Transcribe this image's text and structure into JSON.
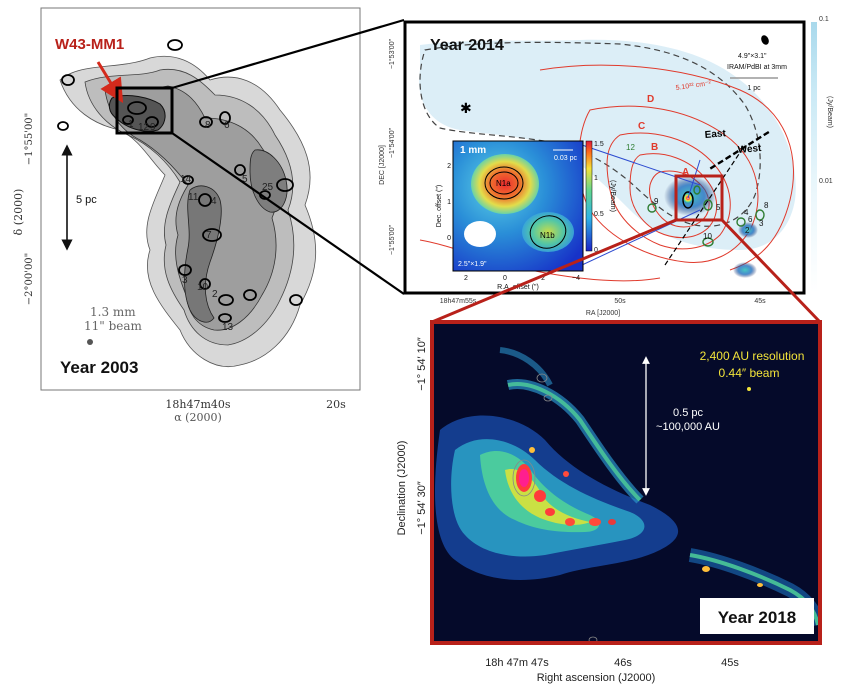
{
  "panels": {
    "p2003": {
      "title": "Year 2003",
      "source_label": "W43-MM1",
      "scale_label": "5 pc",
      "beam_label_line1": "1.3 mm",
      "beam_label_line2": "11\" beam",
      "ytick_1": "−1°55'00\"",
      "ytick_2": "−2°00'00\"",
      "ylabel": "δ (2000)",
      "xtick_1": "18h47m40s",
      "xtick_2": "20s",
      "xlabel": "α (2000)",
      "core_ids": [
        "1",
        "2",
        "3",
        "4",
        "5",
        "6",
        "7",
        "8",
        "9",
        "10",
        "11",
        "12",
        "13",
        "14",
        "25"
      ]
    },
    "p2014": {
      "title": "Year 2014",
      "beam_label": "4.9\"×3.1\"",
      "instrument_label": "IRAM/PdBI at 3mm",
      "scale_label": "1 pc",
      "ytick_1": "−1°53'00\"",
      "ytick_2": "−1°54'00\"",
      "ytick_3": "−1°55'00\"",
      "ylabel": "DEC [J2000]",
      "xtick_1": "18h47m55s",
      "xtick_2": "50s",
      "xtick_3": "45s",
      "xlabel": "RA [J2000]",
      "cbar_top": "0.1",
      "cbar_mid": "0.01",
      "cbar_label": "(Jy/Beam)",
      "region_labels": [
        "A",
        "B",
        "C",
        "D"
      ],
      "column_density_label": "5.10²² cm⁻²",
      "east_label": "East",
      "west_label": "West",
      "core_ids": [
        "2",
        "3",
        "4",
        "5",
        "6",
        "8",
        "9",
        "10",
        "12"
      ],
      "inset": {
        "band_label": "1 mm",
        "scale_label": "0.03 pc",
        "beam_label": "2.5\"×1.9\"",
        "source_a": "N1a",
        "source_b": "N1b",
        "xlabel": "R.A. offset (\")",
        "ylabel": "Dec. offset (\")",
        "cbar_label": "(Jy/Beam)",
        "xticks": [
          "2",
          "0",
          "−2",
          "−4"
        ],
        "yticks": [
          "2",
          "1",
          "0"
        ],
        "cbar_ticks": [
          "1.5",
          "1",
          "0.5",
          "0"
        ]
      }
    },
    "p2018": {
      "title": "Year 2018",
      "resolution_label": "2,400 AU resolution",
      "beam_label": "0.44″ beam",
      "scale_label_1": "0.5 pc",
      "scale_label_2": "~100,000 AU",
      "ytick_1": "−1° 54′ 10″",
      "ytick_2": "−1° 54′ 30″",
      "ylabel": "Declination (J2000)",
      "xtick_1": "18h 47m 47s",
      "xtick_2": "46s",
      "xtick_3": "45s",
      "xlabel": "Right ascension (J2000)"
    }
  },
  "colors": {
    "highlight_red": "#b8211a",
    "arrow_red": "#d42a1c",
    "contour_red": "#e03a2c",
    "frame_black": "#111111",
    "alma_yellow": "#f2e33a"
  }
}
